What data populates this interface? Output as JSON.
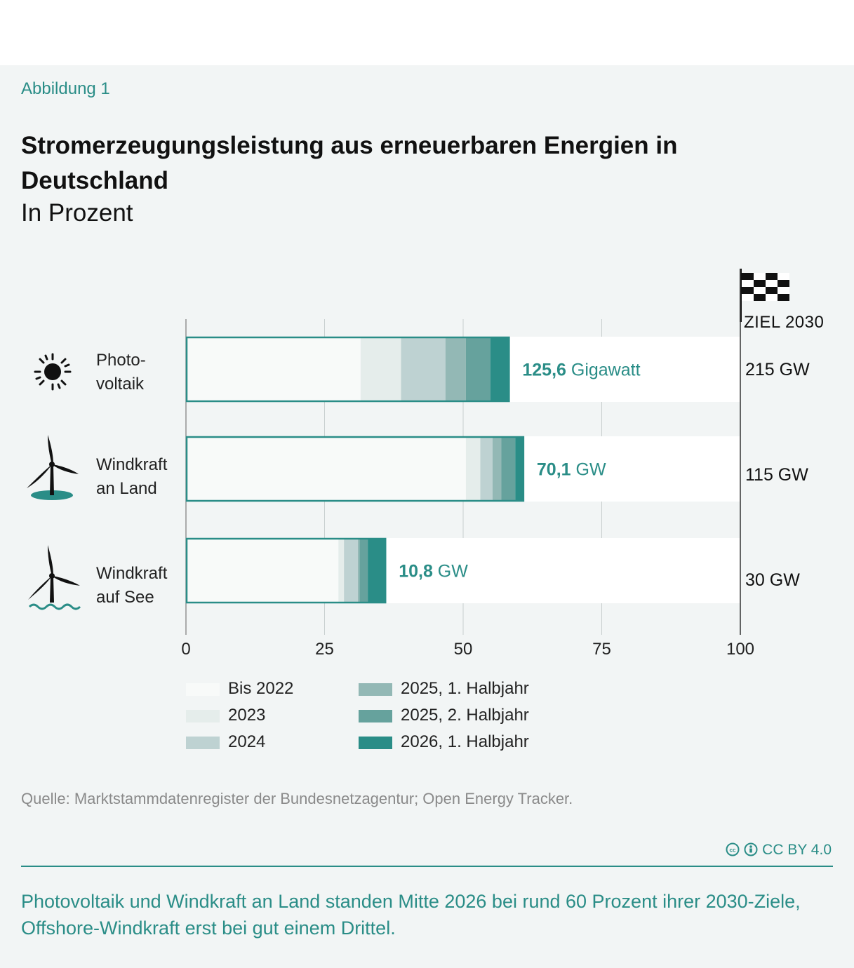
{
  "kicker": "Abbildung 1",
  "title": "Stromerzeugungsleistung aus erneuerbaren Energien in Deutschland",
  "subtitle": "In Prozent",
  "goal_label": "ZIEL 2030",
  "colors": {
    "Bis 2022": "#f8faf9",
    "2023": "#e5edeb",
    "2024": "#bed2d2",
    "2025, 1. Halbjahr": "#93b8b5",
    "2025, 2. Halbjahr": "#66a29d",
    "2026, 1. Halbjahr": "#2a8d87",
    "accent": "#2a8d87"
  },
  "icons": [
    "sun-icon",
    "wind-turbine-land-icon",
    "wind-turbine-sea-icon",
    "checkered-flag-icon",
    "cc-icon",
    "by-icon"
  ],
  "chart_data": {
    "type": "bar",
    "orientation": "horizontal",
    "stacked": true,
    "xlim": [
      0,
      100
    ],
    "xticks": [
      "0",
      "25",
      "50",
      "75",
      "100"
    ],
    "grid": true,
    "legend": "bottom",
    "categories": [
      "Photo- voltaik",
      "Windkraft an Land",
      "Windkraft auf See"
    ],
    "category_lines": [
      [
        "Photo-",
        "voltaik"
      ],
      [
        "Windkraft",
        "an Land"
      ],
      [
        "Windkraft",
        "auf See"
      ]
    ],
    "series": [
      {
        "name": "Bis 2022",
        "values": [
          31.5,
          50.5,
          27.5
        ]
      },
      {
        "name": "2023",
        "values": [
          7.3,
          2.6,
          1.0
        ]
      },
      {
        "name": "2024",
        "values": [
          8.0,
          2.2,
          2.5
        ]
      },
      {
        "name": "2025, 1. Halbjahr",
        "values": [
          3.7,
          1.6,
          0.3
        ]
      },
      {
        "name": "2025, 2. Halbjahr",
        "values": [
          4.4,
          2.5,
          1.5
        ]
      },
      {
        "name": "2026, 1. Halbjahr",
        "values": [
          3.5,
          1.6,
          3.3
        ]
      }
    ],
    "value_labels": [
      {
        "bold": "125,6",
        "rest": " Gigawatt"
      },
      {
        "bold": "70,1",
        "rest": " GW"
      },
      {
        "bold": "10,8",
        "rest": " GW"
      }
    ],
    "targets": [
      "215 GW",
      "115 GW",
      "30 GW"
    ]
  },
  "source": "Quelle: Marktstammdatenregister der Bundesnetzagentur; Open Energy Tracker.",
  "license": "CC BY 4.0",
  "caption": "Photovoltaik und Windkraft an Land standen Mitte 2026 bei rund 60 Prozent ihrer 2030-Ziele, Offshore-Windkraft erst bei gut einem Drittel."
}
